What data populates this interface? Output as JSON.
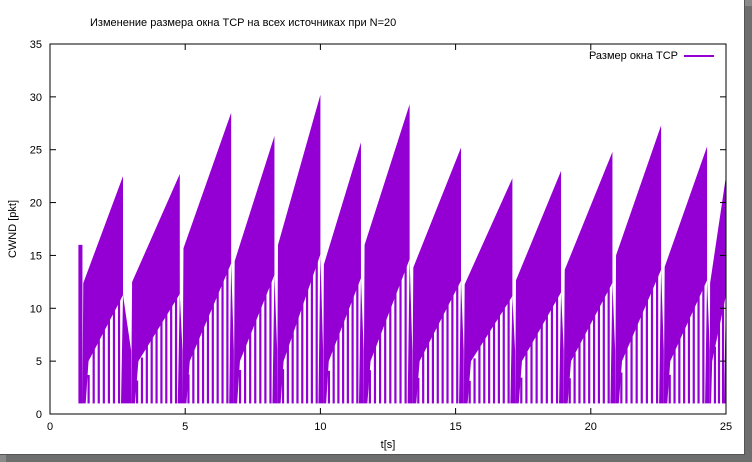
{
  "chart_data": {
    "type": "line",
    "title": "Изменение размера окна TCP на всех источниках при N=20",
    "xlabel": "t[s]",
    "ylabel": "CWND [pkt]",
    "xlim": [
      0,
      25
    ],
    "ylim": [
      0,
      35
    ],
    "xticks": [
      "0",
      "5",
      "10",
      "15",
      "20",
      "25"
    ],
    "yticks": [
      "0",
      "5",
      "10",
      "15",
      "20",
      "25",
      "30",
      "35"
    ],
    "grid": false,
    "legend_position": "top-right",
    "series": [
      {
        "name": "Размер окна TCP",
        "color": "#9400d3",
        "cycles": [
          {
            "t_start": 1.2,
            "t_peak": 2.7,
            "min": 1,
            "peak": 22.5
          },
          {
            "t_start": 3.0,
            "t_peak": 4.8,
            "min": 1,
            "peak": 22.7
          },
          {
            "t_start": 4.9,
            "t_peak": 6.7,
            "min": 1,
            "peak": 28.5
          },
          {
            "t_start": 6.8,
            "t_peak": 8.3,
            "min": 1,
            "peak": 26.3
          },
          {
            "t_start": 8.4,
            "t_peak": 10.0,
            "min": 1,
            "peak": 30.2
          },
          {
            "t_start": 10.1,
            "t_peak": 11.5,
            "min": 1,
            "peak": 25.7
          },
          {
            "t_start": 11.6,
            "t_peak": 13.3,
            "min": 1,
            "peak": 29.3
          },
          {
            "t_start": 13.4,
            "t_peak": 15.2,
            "min": 1,
            "peak": 25.2
          },
          {
            "t_start": 15.3,
            "t_peak": 17.1,
            "min": 1,
            "peak": 22.3
          },
          {
            "t_start": 17.2,
            "t_peak": 18.9,
            "min": 1,
            "peak": 23.0
          },
          {
            "t_start": 19.0,
            "t_peak": 20.8,
            "min": 1,
            "peak": 24.8
          },
          {
            "t_start": 20.9,
            "t_peak": 22.6,
            "min": 1,
            "peak": 27.3
          },
          {
            "t_start": 22.7,
            "t_peak": 24.3,
            "min": 1,
            "peak": 25.3
          },
          {
            "t_start": 24.4,
            "t_peak": 25.0,
            "min": 1,
            "peak": 22.5
          }
        ]
      }
    ]
  }
}
